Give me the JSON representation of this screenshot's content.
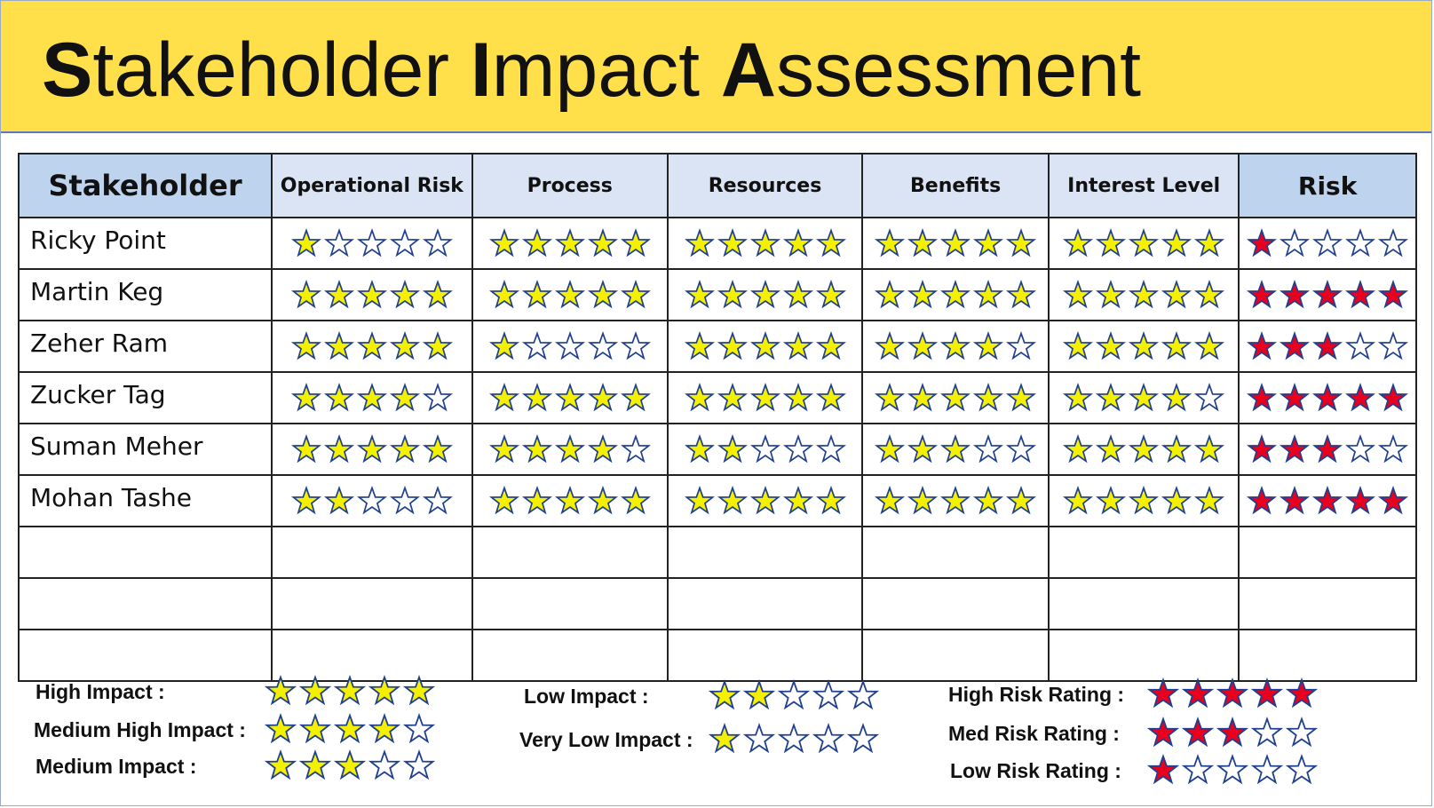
{
  "title": {
    "s": "S",
    "tail1": "takeholder ",
    "i": "I",
    "tail2": "mpact ",
    "a": "A",
    "tail3": "ssessment"
  },
  "columns": [
    "Stakeholder",
    "Operational Risk",
    "Process",
    "Resources",
    "Benefits",
    "Interest Level",
    "Risk"
  ],
  "colors": {
    "yellow_star": "#f4f000",
    "red_star": "#e8001e",
    "star_outline": "#1f3f8f",
    "banner": "#ffe04b"
  },
  "rows": [
    {
      "name": "Ricky Point",
      "ratings": [
        1,
        5,
        5,
        5,
        5
      ],
      "risk": 1
    },
    {
      "name": "Martin Keg",
      "ratings": [
        5,
        5,
        5,
        5,
        5
      ],
      "risk": 5
    },
    {
      "name": "Zeher Ram",
      "ratings": [
        5,
        1,
        5,
        4,
        5
      ],
      "risk": 3
    },
    {
      "name": "Zucker Tag",
      "ratings": [
        4,
        5,
        5,
        5,
        4
      ],
      "risk": 5
    },
    {
      "name": "Suman Meher",
      "ratings": [
        5,
        4,
        2,
        3,
        5
      ],
      "risk": 3
    },
    {
      "name": "Mohan Tashe",
      "ratings": [
        2,
        5,
        5,
        5,
        5
      ],
      "risk": 5
    }
  ],
  "empty_rows": 3,
  "legend": {
    "high_impact": {
      "label": "High Impact :",
      "stars": 5,
      "color": "yellow"
    },
    "medium_high_impact": {
      "label": "Medium High Impact :",
      "stars": 4,
      "color": "yellow"
    },
    "medium_impact": {
      "label": "Medium Impact :",
      "stars": 3,
      "color": "yellow"
    },
    "low_impact": {
      "label": "Low Impact :",
      "stars": 2,
      "color": "yellow"
    },
    "very_low_impact": {
      "label": "Very Low Impact :",
      "stars": 1,
      "color": "yellow"
    },
    "high_risk_rating": {
      "label": "High Risk Rating :",
      "stars": 5,
      "color": "red"
    },
    "med_risk_rating": {
      "label": "Med Risk Rating :",
      "stars": 3,
      "color": "red"
    },
    "low_risk_rating": {
      "label": "Low Risk Rating :",
      "stars": 1,
      "color": "red"
    }
  }
}
